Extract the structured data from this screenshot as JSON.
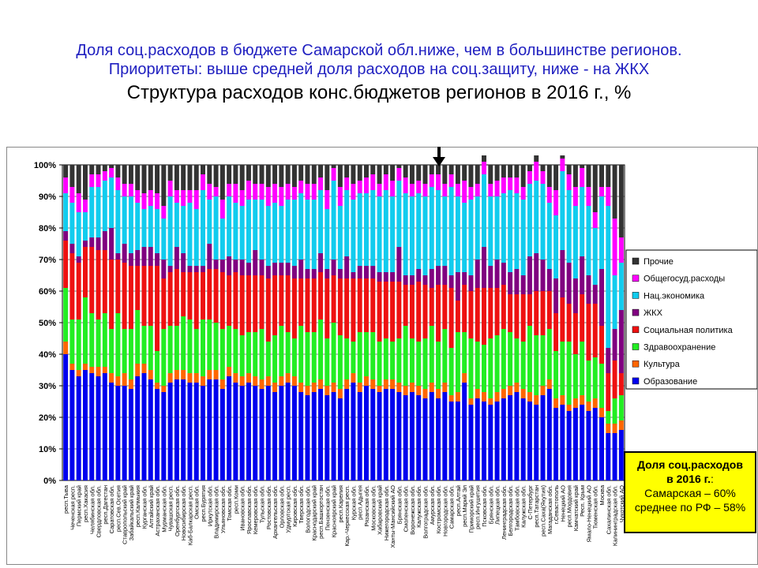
{
  "header": {
    "line1": "Доля соц.расходов в бюджете Самарской обл.ниже, чем в большинстве регионов.",
    "line2": "Приоритеты: выше средней доля расходов на соц.защиту, ниже - на ЖКХ",
    "title": "Структура расходов конс.бюджетов регионов в 2016 г., %"
  },
  "infobox": {
    "heading1": "Доля соц.расходов",
    "heading2": "в 2016 г.",
    "heading2_suffix": ":",
    "line1": "Самарская – 60%",
    "line2": "среднее по РФ – 58%"
  },
  "chart_data": {
    "type": "bar",
    "stacked": true,
    "ylim": [
      0,
      100
    ],
    "ytick_labels": [
      "0%",
      "10%",
      "20%",
      "30%",
      "40%",
      "50%",
      "60%",
      "70%",
      "80%",
      "90%",
      "100%"
    ],
    "legend_position": "right",
    "categories": [
      "респ.Тыва",
      "Чеченская респ.",
      "Пермский край",
      "респ.Хакасия",
      "Челябинская обл.",
      "Свердловская обл.",
      "респ.Дагестан",
      "Саратовская обл.",
      "респ.Сев.Осетия",
      "Ставропольский край",
      "Забайкальский край",
      "респ.Калмыкия",
      "Курганская обл.",
      "Алтайский край",
      "Астраханская обл.",
      "Мурманская обл.",
      "Чувашская респ.",
      "Оренбургская обл.",
      "Новосибирская обл.",
      "Каб-Балкарская респ.",
      "Омская обл.",
      "респ.Бурятия",
      "Иркутская обл.",
      "Владимирская обл.",
      "Ульяновская обл.",
      "Томская обл.",
      "респ.Коми",
      "Ивановская обл.",
      "Ярославская обл.",
      "Кемеровская обл.",
      "Тульская обл.",
      "Ростовская обл.",
      "Архангельская обл.",
      "Орловская обл.",
      "Удмуртская респ.",
      "Кировская обл.",
      "Тверская обл.",
      "Вологодская обл.",
      "Краснодарский край",
      "респ.Башкортостан",
      "Пензенская обл.",
      "Красноярский край",
      "респ.Карелия",
      "Кар.-Черкесская респ.",
      "Курская обл.",
      "респ.Адыгея",
      "Рязанская обл.",
      "Московская обл.",
      "Хабаровский край",
      "Нижегородская обл.",
      "Ханты-Мансийский АО",
      "Брянская обл.",
      "Смоленская обл.",
      "Воронежская обл.",
      "Калужская обл.",
      "Волгоградская обл.",
      "Амурская обл.",
      "Костромская обл.",
      "Новгородская обл.",
      "Самарская обл.",
      "респ.Алтай",
      "респ.Марий Эл",
      "Приморский край",
      "респ.Ингушетия",
      "Псковская обл.",
      "Брянская обл.",
      "Липецкая обл.",
      "Ленинградская обл.",
      "Белгородская обл.",
      "Тамбовская обл.",
      "Калужская обл.",
      "С-Петербург",
      "респ.Татарстан",
      "респ.Саха(Якутия)",
      "Магаданская обл.",
      "г.Севастополь",
      "Ненецкий АО",
      "респ.Мордовия",
      "Камчатский край",
      "Респ. Крым",
      "Ямало-Ненецкий АО",
      "Тюменская обл.",
      "Москва",
      "Сахалинская обл.",
      "Калининградская обл.",
      "Чукотский АО"
    ],
    "series": [
      {
        "name": "Образование",
        "color": "#0000ee",
        "values": [
          40,
          35,
          33,
          35,
          34,
          33,
          34,
          31,
          30,
          30,
          29,
          33,
          34,
          32,
          29,
          28,
          31,
          32,
          32,
          31,
          31,
          30,
          32,
          32,
          29,
          33,
          31,
          30,
          31,
          30,
          29,
          30,
          28,
          30,
          31,
          30,
          28,
          27,
          28,
          29,
          27,
          28,
          26,
          29,
          31,
          28,
          30,
          29,
          28,
          29,
          29,
          28,
          27,
          28,
          27,
          26,
          28,
          26,
          28,
          25,
          25,
          31,
          24,
          26,
          25,
          24,
          25,
          26,
          27,
          28,
          26,
          25,
          24,
          27,
          29,
          23,
          24,
          22,
          23,
          24,
          22,
          23,
          20,
          15,
          15,
          16
        ]
      },
      {
        "name": "Культура",
        "color": "#ff6600",
        "values": [
          4,
          2,
          2,
          2,
          2,
          3,
          2,
          3,
          3,
          4,
          3,
          4,
          3,
          3,
          2,
          2,
          3,
          3,
          3,
          3,
          3,
          3,
          3,
          3,
          3,
          3,
          3,
          3,
          3,
          3,
          3,
          3,
          3,
          3,
          3,
          3,
          3,
          3,
          3,
          3,
          3,
          3,
          3,
          3,
          3,
          3,
          3,
          3,
          2,
          3,
          3,
          3,
          3,
          3,
          3,
          3,
          3,
          3,
          3,
          2,
          3,
          3,
          2,
          3,
          3,
          2,
          3,
          3,
          3,
          3,
          3,
          3,
          3,
          3,
          3,
          3,
          3,
          2,
          3,
          3,
          3,
          3,
          3,
          3,
          3,
          3
        ]
      },
      {
        "name": "Здравоохранение",
        "color": "#22ee22",
        "values": [
          17,
          14,
          16,
          21,
          17,
          15,
          17,
          14,
          20,
          14,
          16,
          17,
          12,
          14,
          10,
          18,
          15,
          14,
          17,
          17,
          14,
          18,
          16,
          15,
          16,
          13,
          14,
          13,
          13,
          14,
          16,
          11,
          15,
          16,
          13,
          12,
          18,
          17,
          16,
          19,
          15,
          19,
          17,
          13,
          10,
          16,
          14,
          15,
          14,
          13,
          12,
          14,
          19,
          14,
          14,
          16,
          18,
          15,
          17,
          15,
          19,
          13,
          19,
          15,
          15,
          19,
          18,
          19,
          17,
          14,
          15,
          21,
          19,
          16,
          16,
          15,
          17,
          20,
          14,
          17,
          13,
          13,
          14,
          4,
          8,
          8
        ]
      },
      {
        "name": "Социальная политика",
        "color": "#ee1111",
        "values": [
          15,
          21,
          18,
          16,
          21,
          22,
          20,
          22,
          17,
          21,
          20,
          14,
          19,
          19,
          27,
          16,
          17,
          18,
          14,
          15,
          18,
          15,
          16,
          17,
          18,
          16,
          18,
          19,
          18,
          18,
          17,
          20,
          19,
          16,
          18,
          19,
          15,
          17,
          17,
          15,
          19,
          15,
          18,
          19,
          20,
          17,
          17,
          17,
          19,
          18,
          19,
          18,
          13,
          17,
          19,
          17,
          12,
          18,
          14,
          19,
          10,
          15,
          15,
          17,
          18,
          16,
          15,
          14,
          12,
          14,
          15,
          10,
          14,
          14,
          12,
          12,
          14,
          12,
          13,
          15,
          18,
          17,
          12,
          12,
          12,
          7
        ]
      },
      {
        "name": "ЖКХ",
        "color": "#800080",
        "values": [
          3,
          3,
          2,
          2,
          3,
          4,
          6,
          10,
          2,
          6,
          4,
          5,
          6,
          6,
          4,
          6,
          2,
          7,
          6,
          2,
          2,
          2,
          8,
          3,
          4,
          6,
          4,
          5,
          4,
          8,
          5,
          4,
          4,
          4,
          4,
          4,
          6,
          3,
          3,
          6,
          3,
          5,
          3,
          7,
          2,
          4,
          4,
          4,
          3,
          3,
          3,
          11,
          3,
          3,
          4,
          3,
          6,
          6,
          6,
          4,
          9,
          4,
          5,
          9,
          13,
          7,
          9,
          7,
          7,
          8,
          6,
          12,
          12,
          10,
          7,
          11,
          15,
          13,
          11,
          12,
          9,
          6,
          18,
          8,
          10,
          20
        ]
      },
      {
        "name": "Нац.экономика",
        "color": "#11ccee",
        "values": [
          12,
          13,
          14,
          9,
          16,
          16,
          16,
          16,
          20,
          15,
          18,
          15,
          12,
          13,
          14,
          13,
          22,
          14,
          15,
          20,
          18,
          24,
          14,
          20,
          13,
          19,
          18,
          17,
          20,
          16,
          19,
          19,
          19,
          18,
          20,
          21,
          21,
          22,
          22,
          20,
          19,
          25,
          20,
          21,
          23,
          23,
          23,
          24,
          24,
          26,
          24,
          21,
          26,
          25,
          24,
          25,
          26,
          24,
          22,
          28,
          24,
          22,
          24,
          20,
          23,
          22,
          20,
          22,
          26,
          24,
          24,
          23,
          23,
          24,
          21,
          20,
          25,
          23,
          23,
          22,
          22,
          18,
          23,
          45,
          17,
          15
        ]
      },
      {
        "name": "Общегосуд.расходы",
        "color": "#ff00ff",
        "values": [
          5,
          5,
          6,
          4,
          4,
          4,
          3,
          3,
          4,
          4,
          4,
          4,
          5,
          5,
          5,
          4,
          5,
          4,
          5,
          4,
          6,
          5,
          5,
          3,
          6,
          4,
          6,
          5,
          6,
          5,
          5,
          6,
          6,
          6,
          5,
          4,
          4,
          5,
          5,
          4,
          6,
          4,
          6,
          4,
          5,
          4,
          5,
          5,
          4,
          5,
          5,
          4,
          5,
          4,
          4,
          4,
          4,
          5,
          4,
          4,
          4,
          7,
          4,
          4,
          4,
          4,
          5,
          5,
          4,
          5,
          4,
          4,
          6,
          4,
          5,
          8,
          4,
          5,
          6,
          6,
          6,
          5,
          3,
          6,
          18,
          8
        ]
      },
      {
        "name": "Прочие",
        "color": "#333333",
        "values": [
          4,
          7,
          9,
          11,
          3,
          3,
          2,
          1,
          4,
          6,
          6,
          8,
          9,
          8,
          9,
          13,
          5,
          8,
          8,
          8,
          8,
          3,
          6,
          7,
          11,
          6,
          6,
          8,
          5,
          6,
          6,
          7,
          6,
          7,
          6,
          7,
          5,
          6,
          6,
          4,
          8,
          1,
          7,
          4,
          6,
          5,
          4,
          3,
          6,
          3,
          5,
          1,
          4,
          6,
          5,
          6,
          3,
          3,
          6,
          3,
          6,
          5,
          7,
          6,
          2,
          6,
          5,
          4,
          4,
          4,
          7,
          2,
          2,
          2,
          7,
          8,
          1,
          3,
          7,
          1,
          7,
          15,
          7,
          7,
          17,
          23
        ]
      }
    ]
  },
  "marker": {
    "label": "down-arrow"
  }
}
